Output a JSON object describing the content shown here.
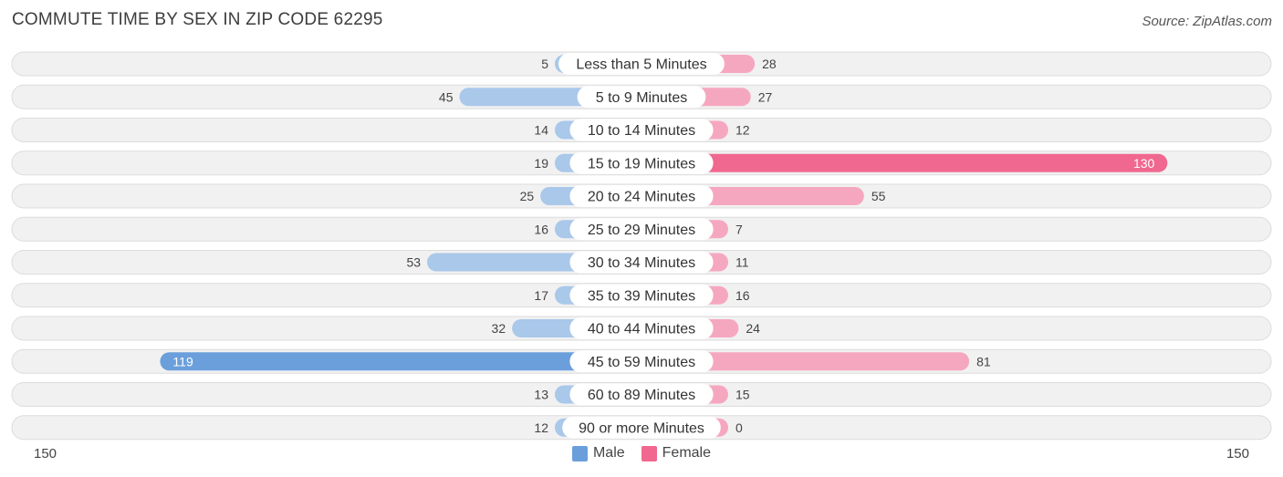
{
  "title": "COMMUTE TIME BY SEX IN ZIP CODE 62295",
  "source": "Source: ZipAtlas.com",
  "axis": {
    "left_label": "150",
    "right_label": "150"
  },
  "legend": {
    "male": "Male",
    "female": "Female"
  },
  "colors": {
    "male_light": "#a9c8ea",
    "male_strong": "#6a9fdc",
    "female_light": "#f6a7c0",
    "female_strong": "#f0688f",
    "row_bg": "#f1f1f1",
    "row_border": "#dcdcdc"
  },
  "chart_data": {
    "type": "bar",
    "orientation": "horizontal-diverging",
    "title": "COMMUTE TIME BY SEX IN ZIP CODE 62295",
    "xlim": [
      -150,
      150
    ],
    "categories": [
      "Less than 5 Minutes",
      "5 to 9 Minutes",
      "10 to 14 Minutes",
      "15 to 19 Minutes",
      "20 to 24 Minutes",
      "25 to 29 Minutes",
      "30 to 34 Minutes",
      "35 to 39 Minutes",
      "40 to 44 Minutes",
      "45 to 59 Minutes",
      "60 to 89 Minutes",
      "90 or more Minutes"
    ],
    "series": [
      {
        "name": "Male",
        "values": [
          5,
          45,
          14,
          19,
          25,
          16,
          53,
          17,
          32,
          119,
          13,
          12
        ]
      },
      {
        "name": "Female",
        "values": [
          28,
          27,
          12,
          130,
          55,
          7,
          11,
          16,
          24,
          81,
          15,
          0
        ]
      }
    ],
    "legend_position": "bottom-center"
  }
}
